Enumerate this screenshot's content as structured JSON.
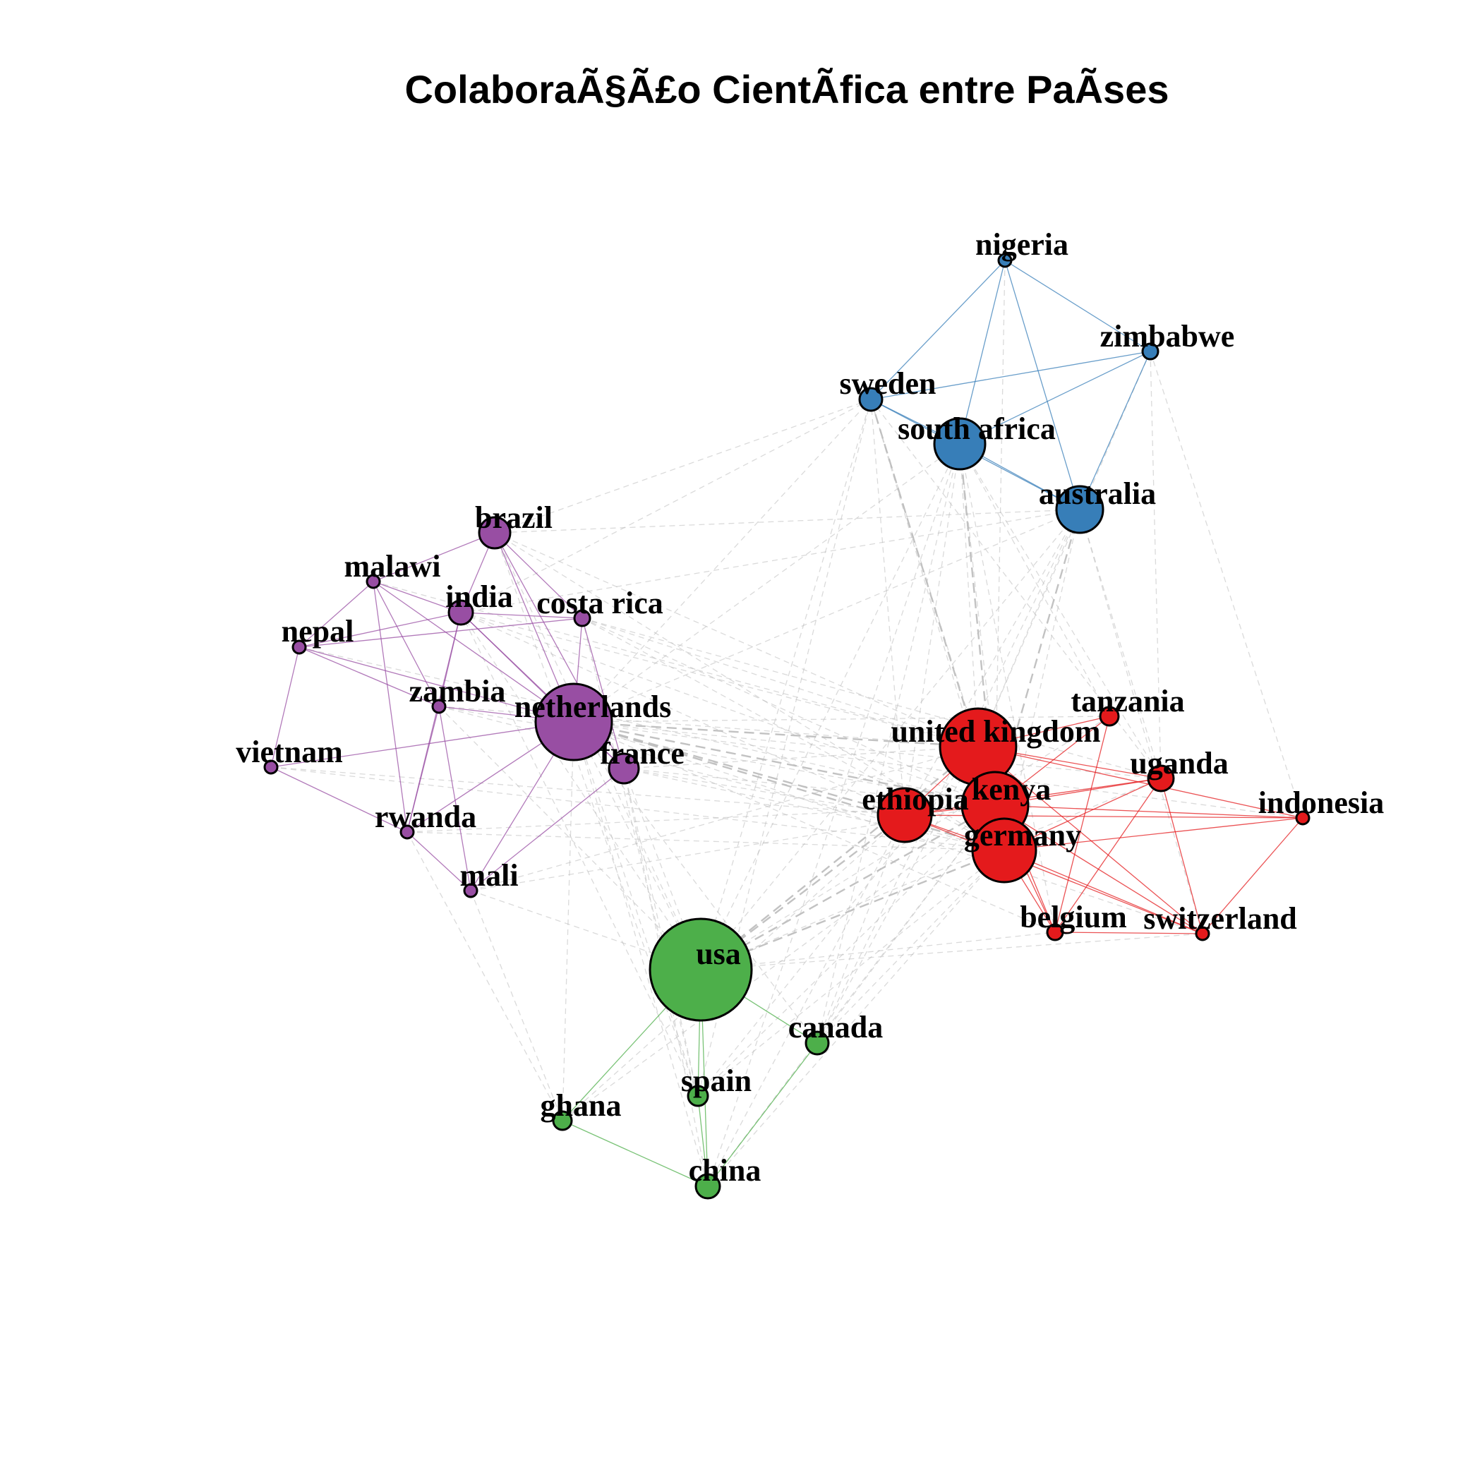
{
  "title": "ColaboraÃ§Ã£o CientÃ­fica entre PaÃ­ses",
  "cluster_colors": {
    "blue": "#377EB8",
    "purple": "#984EA3",
    "red": "#E41A1C",
    "green": "#4DAF4A",
    "inter_cluster_edge": "#BBBBBB"
  },
  "nodes": [
    {
      "id": "nigeria",
      "label": "nigeria",
      "cluster": "blue"
    },
    {
      "id": "zimbabwe",
      "label": "zimbabwe",
      "cluster": "blue"
    },
    {
      "id": "sweden",
      "label": "sweden",
      "cluster": "blue"
    },
    {
      "id": "south_africa",
      "label": "south africa",
      "cluster": "blue"
    },
    {
      "id": "australia",
      "label": "australia",
      "cluster": "blue"
    },
    {
      "id": "brazil",
      "label": "brazil",
      "cluster": "purple"
    },
    {
      "id": "malawi",
      "label": "malawi",
      "cluster": "purple"
    },
    {
      "id": "india",
      "label": "india",
      "cluster": "purple"
    },
    {
      "id": "costa_rica",
      "label": "costa rica",
      "cluster": "purple"
    },
    {
      "id": "nepal",
      "label": "nepal",
      "cluster": "purple"
    },
    {
      "id": "zambia",
      "label": "zambia",
      "cluster": "purple"
    },
    {
      "id": "netherlands",
      "label": "netherlands",
      "cluster": "purple"
    },
    {
      "id": "vietnam",
      "label": "vietnam",
      "cluster": "purple"
    },
    {
      "id": "france",
      "label": "france",
      "cluster": "purple"
    },
    {
      "id": "rwanda",
      "label": "rwanda",
      "cluster": "purple"
    },
    {
      "id": "mali",
      "label": "mali",
      "cluster": "purple"
    },
    {
      "id": "tanzania",
      "label": "tanzania",
      "cluster": "red"
    },
    {
      "id": "united_kingdom",
      "label": "united kingdom",
      "cluster": "red"
    },
    {
      "id": "uganda",
      "label": "uganda",
      "cluster": "red"
    },
    {
      "id": "kenya",
      "label": "kenya",
      "cluster": "red"
    },
    {
      "id": "ethiopia",
      "label": "ethiopia",
      "cluster": "red"
    },
    {
      "id": "indonesia",
      "label": "indonesia",
      "cluster": "red"
    },
    {
      "id": "germany",
      "label": "germany",
      "cluster": "red"
    },
    {
      "id": "belgium",
      "label": "belgium",
      "cluster": "red"
    },
    {
      "id": "switzerland",
      "label": "switzerland",
      "cluster": "red"
    },
    {
      "id": "usa",
      "label": "usa",
      "cluster": "green"
    },
    {
      "id": "canada",
      "label": "canada",
      "cluster": "green"
    },
    {
      "id": "spain",
      "label": "spain",
      "cluster": "green"
    },
    {
      "id": "ghana",
      "label": "ghana",
      "cluster": "green"
    },
    {
      "id": "china",
      "label": "china",
      "cluster": "green"
    }
  ],
  "edges": [
    [
      "nigeria",
      "south_africa"
    ],
    [
      "nigeria",
      "australia"
    ],
    [
      "nigeria",
      "zimbabwe"
    ],
    [
      "zimbabwe",
      "sweden"
    ],
    [
      "zimbabwe",
      "south_africa"
    ],
    [
      "zimbabwe",
      "australia"
    ],
    [
      "sweden",
      "south_africa"
    ],
    [
      "south_africa",
      "australia"
    ],
    [
      "sweden",
      "australia"
    ],
    [
      "brazil",
      "india"
    ],
    [
      "brazil",
      "malawi"
    ],
    [
      "brazil",
      "netherlands"
    ],
    [
      "brazil",
      "france"
    ],
    [
      "brazil",
      "costa_rica"
    ],
    [
      "malawi",
      "india"
    ],
    [
      "malawi",
      "nepal"
    ],
    [
      "malawi",
      "netherlands"
    ],
    [
      "malawi",
      "zambia"
    ],
    [
      "malawi",
      "rwanda"
    ],
    [
      "india",
      "nepal"
    ],
    [
      "india",
      "costa_rica"
    ],
    [
      "india",
      "netherlands"
    ],
    [
      "india",
      "zambia"
    ],
    [
      "india",
      "france"
    ],
    [
      "india",
      "rwanda"
    ],
    [
      "costa_rica",
      "netherlands"
    ],
    [
      "costa_rica",
      "france"
    ],
    [
      "costa_rica",
      "nepal"
    ],
    [
      "nepal",
      "vietnam"
    ],
    [
      "nepal",
      "netherlands"
    ],
    [
      "nepal",
      "zambia"
    ],
    [
      "zambia",
      "netherlands"
    ],
    [
      "zambia",
      "mali"
    ],
    [
      "zambia",
      "rwanda"
    ],
    [
      "netherlands",
      "vietnam"
    ],
    [
      "netherlands",
      "france"
    ],
    [
      "netherlands",
      "rwanda"
    ],
    [
      "netherlands",
      "mali"
    ],
    [
      "vietnam",
      "rwanda"
    ],
    [
      "rwanda",
      "mali"
    ],
    [
      "france",
      "mali"
    ],
    [
      "tanzania",
      "united_kingdom"
    ],
    [
      "tanzania",
      "kenya"
    ],
    [
      "tanzania",
      "belgium"
    ],
    [
      "united_kingdom",
      "uganda"
    ],
    [
      "united_kingdom",
      "kenya"
    ],
    [
      "united_kingdom",
      "ethiopia"
    ],
    [
      "united_kingdom",
      "germany"
    ],
    [
      "united_kingdom",
      "indonesia"
    ],
    [
      "united_kingdom",
      "switzerland"
    ],
    [
      "united_kingdom",
      "belgium"
    ],
    [
      "uganda",
      "kenya"
    ],
    [
      "uganda",
      "germany"
    ],
    [
      "uganda",
      "ethiopia"
    ],
    [
      "uganda",
      "switzerland"
    ],
    [
      "uganda",
      "belgium"
    ],
    [
      "kenya",
      "ethiopia"
    ],
    [
      "kenya",
      "germany"
    ],
    [
      "kenya",
      "indonesia"
    ],
    [
      "kenya",
      "belgium"
    ],
    [
      "kenya",
      "switzerland"
    ],
    [
      "ethiopia",
      "germany"
    ],
    [
      "ethiopia",
      "indonesia"
    ],
    [
      "ethiopia",
      "switzerland"
    ],
    [
      "germany",
      "belgium"
    ],
    [
      "germany",
      "switzerland"
    ],
    [
      "germany",
      "indonesia"
    ],
    [
      "belgium",
      "switzerland"
    ],
    [
      "indonesia",
      "switzerland"
    ],
    [
      "usa",
      "canada"
    ],
    [
      "usa",
      "spain"
    ],
    [
      "usa",
      "ghana"
    ],
    [
      "usa",
      "china"
    ],
    [
      "ghana",
      "china"
    ],
    [
      "spain",
      "china"
    ],
    [
      "canada",
      "china"
    ],
    [
      "usa",
      "united_kingdom"
    ],
    [
      "usa",
      "kenya"
    ],
    [
      "usa",
      "ethiopia"
    ],
    [
      "usa",
      "germany"
    ],
    [
      "usa",
      "netherlands"
    ],
    [
      "usa",
      "france"
    ],
    [
      "usa",
      "south_africa"
    ],
    [
      "usa",
      "australia"
    ],
    [
      "usa",
      "sweden"
    ],
    [
      "usa",
      "uganda"
    ],
    [
      "usa",
      "tanzania"
    ],
    [
      "usa",
      "india"
    ],
    [
      "usa",
      "brazil"
    ],
    [
      "usa",
      "belgium"
    ],
    [
      "usa",
      "switzerland"
    ],
    [
      "usa",
      "mali"
    ],
    [
      "usa",
      "zambia"
    ],
    [
      "netherlands",
      "united_kingdom"
    ],
    [
      "netherlands",
      "kenya"
    ],
    [
      "netherlands",
      "ethiopia"
    ],
    [
      "netherlands",
      "germany"
    ],
    [
      "netherlands",
      "uganda"
    ],
    [
      "netherlands",
      "belgium"
    ],
    [
      "netherlands",
      "south_africa"
    ],
    [
      "netherlands",
      "australia"
    ],
    [
      "netherlands",
      "sweden"
    ],
    [
      "netherlands",
      "tanzania"
    ],
    [
      "netherlands",
      "spain"
    ],
    [
      "netherlands",
      "ghana"
    ],
    [
      "netherlands",
      "china"
    ],
    [
      "netherlands",
      "canada"
    ],
    [
      "netherlands",
      "switzerland"
    ],
    [
      "netherlands",
      "indonesia"
    ],
    [
      "france",
      "kenya"
    ],
    [
      "france",
      "united_kingdom"
    ],
    [
      "france",
      "ethiopia"
    ],
    [
      "france",
      "germany"
    ],
    [
      "france",
      "china"
    ],
    [
      "france",
      "spain"
    ],
    [
      "south_africa",
      "united_kingdom"
    ],
    [
      "south_africa",
      "kenya"
    ],
    [
      "south_africa",
      "ethiopia"
    ],
    [
      "south_africa",
      "germany"
    ],
    [
      "south_africa",
      "uganda"
    ],
    [
      "south_africa",
      "tanzania"
    ],
    [
      "south_africa",
      "canada"
    ],
    [
      "south_africa",
      "belgium"
    ],
    [
      "australia",
      "united_kingdom"
    ],
    [
      "australia",
      "kenya"
    ],
    [
      "australia",
      "ethiopia"
    ],
    [
      "australia",
      "germany"
    ],
    [
      "australia",
      "uganda"
    ],
    [
      "australia",
      "switzerland"
    ],
    [
      "australia",
      "brazil"
    ],
    [
      "australia",
      "india"
    ],
    [
      "australia",
      "canada"
    ],
    [
      "sweden",
      "united_kingdom"
    ],
    [
      "sweden",
      "kenya"
    ],
    [
      "sweden",
      "ethiopia"
    ],
    [
      "sweden",
      "germany"
    ],
    [
      "sweden",
      "uganda"
    ],
    [
      "sweden",
      "brazil"
    ],
    [
      "sweden",
      "india"
    ],
    [
      "sweden",
      "spain"
    ],
    [
      "nigeria",
      "sweden"
    ],
    [
      "nigeria",
      "kenya"
    ],
    [
      "zimbabwe",
      "uganda"
    ],
    [
      "zimbabwe",
      "indonesia"
    ],
    [
      "zimbabwe",
      "united_kingdom"
    ],
    [
      "costa_rica",
      "united_kingdom"
    ],
    [
      "costa_rica",
      "kenya"
    ],
    [
      "costa_rica",
      "germany"
    ],
    [
      "costa_rica",
      "uganda"
    ],
    [
      "brazil",
      "united_kingdom"
    ],
    [
      "brazil",
      "germany"
    ],
    [
      "india",
      "kenya"
    ],
    [
      "india",
      "united_kingdom"
    ],
    [
      "india",
      "ethiopia"
    ],
    [
      "mali",
      "kenya"
    ],
    [
      "mali",
      "united_kingdom"
    ],
    [
      "mali",
      "ghana"
    ],
    [
      "rwanda",
      "germany"
    ],
    [
      "rwanda",
      "kenya"
    ],
    [
      "rwanda",
      "ghana"
    ],
    [
      "vietnam",
      "ethiopia"
    ],
    [
      "vietnam",
      "germany"
    ],
    [
      "zambia",
      "kenya"
    ],
    [
      "zambia",
      "united_kingdom"
    ],
    [
      "zambia",
      "germany"
    ],
    [
      "nepal",
      "kenya"
    ],
    [
      "malawi",
      "united_kingdom"
    ],
    [
      "canada",
      "united_kingdom"
    ],
    [
      "canada",
      "kenya"
    ],
    [
      "canada",
      "germany"
    ],
    [
      "canada",
      "ethiopia"
    ],
    [
      "spain",
      "kenya"
    ],
    [
      "spain",
      "germany"
    ],
    [
      "spain",
      "united_kingdom"
    ],
    [
      "ghana",
      "kenya"
    ],
    [
      "ghana",
      "ethiopia"
    ],
    [
      "china",
      "kenya"
    ],
    [
      "china",
      "germany"
    ],
    [
      "china",
      "ethiopia"
    ],
    [
      "china",
      "south_africa"
    ],
    [
      "brazil",
      "spain"
    ],
    [
      "costa_rica",
      "spain"
    ],
    [
      "india",
      "spain"
    ]
  ],
  "strong_edges": [
    [
      "netherlands",
      "united_kingdom"
    ],
    [
      "netherlands",
      "kenya"
    ],
    [
      "netherlands",
      "germany"
    ],
    [
      "netherlands",
      "ethiopia"
    ],
    [
      "usa",
      "united_kingdom"
    ],
    [
      "usa",
      "kenya"
    ],
    [
      "usa",
      "germany"
    ],
    [
      "usa",
      "ethiopia"
    ],
    [
      "australia",
      "kenya"
    ],
    [
      "south_africa",
      "kenya"
    ],
    [
      "sweden",
      "kenya"
    ]
  ]
}
